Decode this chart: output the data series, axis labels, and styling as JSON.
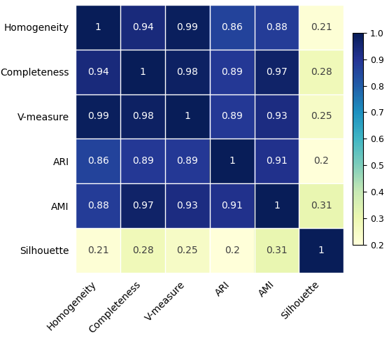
{
  "labels": [
    "Homogeneity",
    "Completeness",
    "V-measure",
    "ARI",
    "AMI",
    "Silhouette"
  ],
  "matrix": [
    [
      1.0,
      0.94,
      0.99,
      0.86,
      0.88,
      0.21
    ],
    [
      0.94,
      1.0,
      0.98,
      0.89,
      0.97,
      0.28
    ],
    [
      0.99,
      0.98,
      1.0,
      0.89,
      0.93,
      0.25
    ],
    [
      0.86,
      0.89,
      0.89,
      1.0,
      0.91,
      0.2
    ],
    [
      0.88,
      0.97,
      0.93,
      0.91,
      1.0,
      0.31
    ],
    [
      0.21,
      0.28,
      0.25,
      0.2,
      0.31,
      1.0
    ]
  ],
  "annotations": [
    [
      "1",
      "0.94",
      "0.99",
      "0.86",
      "0.88",
      "0.21"
    ],
    [
      "0.94",
      "1",
      "0.98",
      "0.89",
      "0.97",
      "0.28"
    ],
    [
      "0.99",
      "0.98",
      "1",
      "0.89",
      "0.93",
      "0.25"
    ],
    [
      "0.86",
      "0.89",
      "0.89",
      "1",
      "0.91",
      "0.2"
    ],
    [
      "0.88",
      "0.97",
      "0.93",
      "0.91",
      "1",
      "0.31"
    ],
    [
      "0.21",
      "0.28",
      "0.25",
      "0.2",
      "0.31",
      "1"
    ]
  ],
  "cmap": "YlGnBu",
  "vmin": 0.2,
  "vmax": 1.0,
  "colorbar_ticks": [
    0.2,
    0.3,
    0.4,
    0.5,
    0.6,
    0.7,
    0.8,
    0.9,
    1.0
  ],
  "text_color_threshold": 0.6,
  "white_text_color": "#ffffff",
  "dark_text_color": "#404040",
  "figsize": [
    5.56,
    4.86
  ],
  "dpi": 100,
  "ylabel_fontsize": 10,
  "xlabel_fontsize": 10,
  "annot_fontsize": 10,
  "cbar_fontsize": 9
}
